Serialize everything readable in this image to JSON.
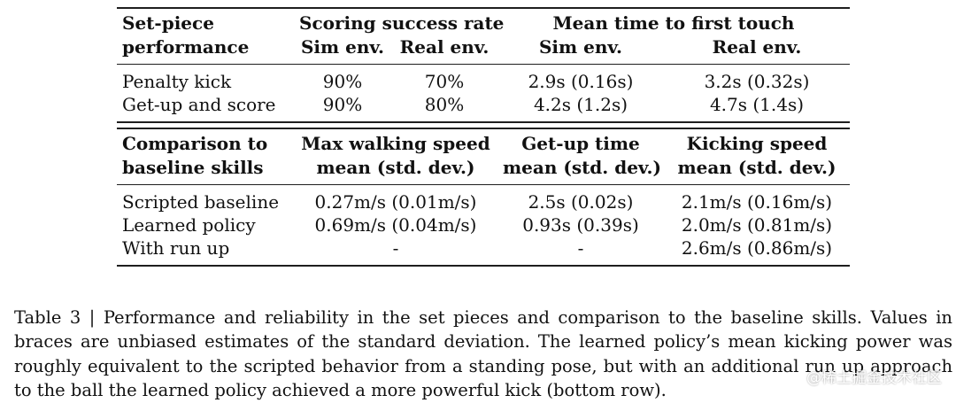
{
  "table": {
    "set_piece": {
      "header_col1_line1": "Set-piece",
      "header_col1_line2": "performance",
      "group_scoring": "Scoring success rate",
      "group_time": "Mean time to first touch",
      "sub_sim1": "Sim env.",
      "sub_real1": "Real env.",
      "sub_sim2": "Sim env.",
      "sub_real2": "Real env.",
      "rows": [
        {
          "label": "Penalty kick",
          "score_sim": "90%",
          "score_real": "70%",
          "time_sim": "2.9s (0.16s)",
          "time_real": "3.2s (0.32s)"
        },
        {
          "label": "Get-up and score",
          "score_sim": "90%",
          "score_real": "80%",
          "time_sim": "4.2s (1.2s)",
          "time_real": "4.7s (1.4s)"
        }
      ]
    },
    "baseline": {
      "header_col1_line1": "Comparison to",
      "header_col1_line2": "baseline skills",
      "col2_line1": "Max walking speed",
      "col2_line2": "mean (std. dev.)",
      "col3_line1": "Get-up time",
      "col3_line2": "mean (std. dev.)",
      "col4_line1": "Kicking speed",
      "col4_line2": "mean (std. dev.)",
      "rows": [
        {
          "label": "Scripted baseline",
          "walk": "0.27m/s (0.01m/s)",
          "getup": "2.5s (0.02s)",
          "kick": "2.1m/s (0.16m/s)"
        },
        {
          "label": "Learned policy",
          "walk": "0.69m/s (0.04m/s)",
          "getup": "0.93s (0.39s)",
          "kick": "2.0m/s (0.81m/s)"
        },
        {
          "label": "With run up",
          "walk": "-",
          "getup": "-",
          "kick": "2.6m/s (0.86m/s)"
        }
      ]
    }
  },
  "caption": "Table 3 | Performance and reliability in the set pieces and comparison to the baseline skills. Values in braces are unbiased estimates of the standard deviation. The learned policy’s mean kicking power was roughly equivalent to the scripted behavior from a standing pose, but with an additional run up approach to the ball the learned policy achieved a more powerful kick (bottom row).",
  "watermark": "@稀土掘金技术社区"
}
